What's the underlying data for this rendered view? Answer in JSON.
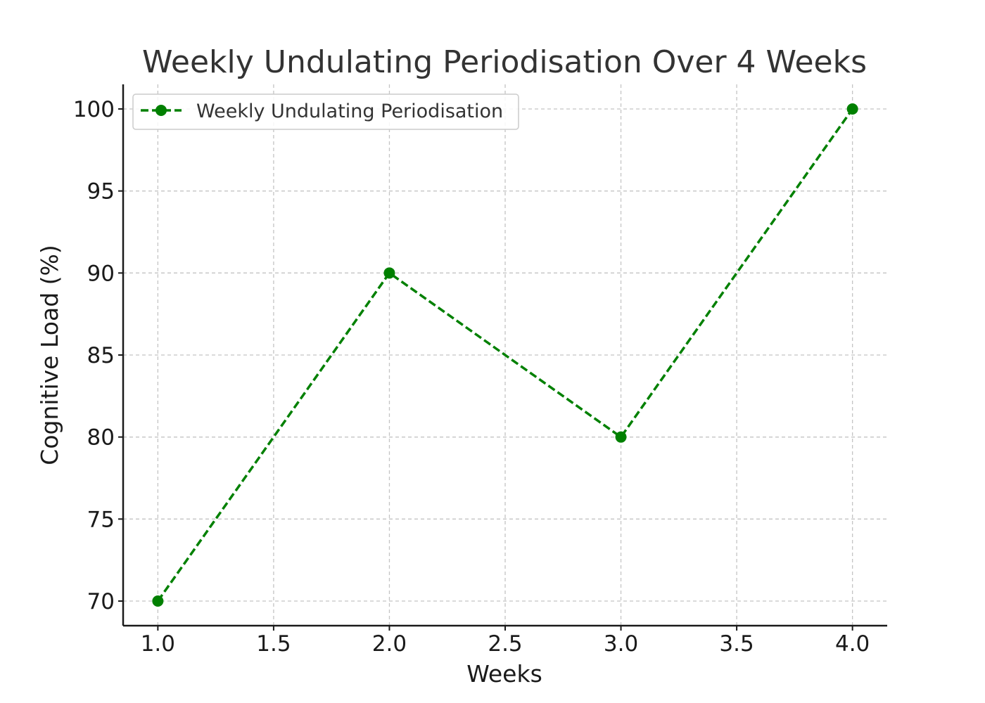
{
  "chart_data": {
    "type": "line",
    "title": "Weekly Undulating Periodisation Over 4 Weeks",
    "xlabel": "Weeks",
    "ylabel": "Cognitive Load (%)",
    "xlim": [
      0.85,
      4.15
    ],
    "ylim": [
      68.5,
      101.5
    ],
    "xticks": [
      1.0,
      1.5,
      2.0,
      2.5,
      3.0,
      3.5,
      4.0
    ],
    "xtick_labels": [
      "1.0",
      "1.5",
      "2.0",
      "2.5",
      "3.0",
      "3.5",
      "4.0"
    ],
    "yticks": [
      70,
      75,
      80,
      85,
      90,
      95,
      100
    ],
    "ytick_labels": [
      "70",
      "75",
      "80",
      "85",
      "90",
      "95",
      "100"
    ],
    "grid": true,
    "legend_position": "top-left",
    "series": [
      {
        "name": "Weekly Undulating Periodisation",
        "color": "#008000",
        "line_style": "dashed",
        "marker": "circle",
        "x": [
          1,
          2,
          3,
          4
        ],
        "y": [
          70,
          90,
          80,
          100
        ]
      }
    ]
  }
}
